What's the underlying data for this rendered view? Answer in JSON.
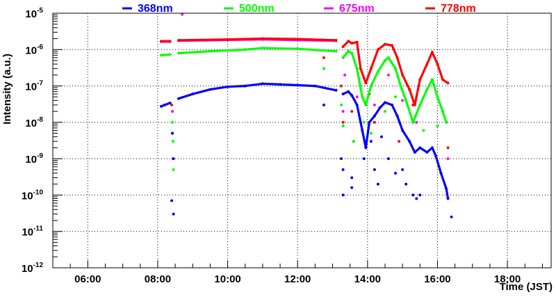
{
  "chart_data": {
    "type": "scatter",
    "title": "",
    "xlabel": "Time (JST)",
    "ylabel": "Intensity (a.u.)",
    "xlim_hours": [
      5.0,
      19.25
    ],
    "ylim": [
      1e-12,
      1e-05
    ],
    "yscale": "log",
    "grid": true,
    "legend_placement": "top",
    "x_ticks": [
      {
        "value": 6,
        "label": "06:00"
      },
      {
        "value": 8,
        "label": "08:00"
      },
      {
        "value": 10,
        "label": "10:00"
      },
      {
        "value": 12,
        "label": "12:00"
      },
      {
        "value": 14,
        "label": "14:00"
      },
      {
        "value": 16,
        "label": "16:00"
      },
      {
        "value": 18,
        "label": "18:00"
      }
    ],
    "y_ticks": [
      {
        "exp": -5,
        "base": "10",
        "sup": "-5"
      },
      {
        "exp": -6,
        "base": "10",
        "sup": "-6"
      },
      {
        "exp": -7,
        "base": "10",
        "sup": "-7"
      },
      {
        "exp": -8,
        "base": "10",
        "sup": "-8"
      },
      {
        "exp": -9,
        "base": "10",
        "sup": "-9"
      },
      {
        "exp": -10,
        "base": "10",
        "sup": "-10"
      },
      {
        "exp": -11,
        "base": "10",
        "sup": "-11"
      },
      {
        "exp": -12,
        "base": "10",
        "sup": "-12"
      }
    ],
    "series": [
      {
        "name": "368nm",
        "color": "#0000ff",
        "segments": [
          [
            [
              8.1,
              2.75e-08
            ],
            [
              8.2,
              3e-08
            ],
            [
              8.35,
              3.4e-08
            ]
          ],
          [
            [
              8.6,
              4.5e-08
            ],
            [
              9.0,
              6e-08
            ],
            [
              9.5,
              8e-08
            ],
            [
              10.0,
              9.5e-08
            ],
            [
              10.5,
              1e-07
            ],
            [
              11.0,
              1.15e-07
            ],
            [
              11.5,
              1.1e-07
            ],
            [
              12.0,
              1.05e-07
            ],
            [
              12.5,
              1e-07
            ],
            [
              13.1,
              7.6e-08
            ]
          ],
          [
            [
              13.3,
              6e-08
            ],
            [
              13.45,
              7e-08
            ],
            [
              13.55,
              5.5e-08
            ],
            [
              13.7,
              3e-08
            ],
            [
              13.85,
              6e-09
            ],
            [
              13.95,
              2e-09
            ],
            [
              14.05,
              1e-08
            ],
            [
              14.2,
              1.5e-08
            ],
            [
              14.35,
              2.5e-08
            ],
            [
              14.5,
              3.5e-08
            ],
            [
              14.7,
              3e-08
            ],
            [
              14.85,
              1.5e-08
            ],
            [
              15.0,
              6e-09
            ],
            [
              15.2,
              3e-09
            ],
            [
              15.35,
              1.5e-09
            ],
            [
              15.5,
              2e-09
            ],
            [
              15.7,
              1.5e-09
            ],
            [
              15.85,
              2e-09
            ],
            [
              15.95,
              1.2e-09
            ],
            [
              16.1,
              4e-10
            ],
            [
              16.25,
              1.5e-10
            ],
            [
              16.3,
              8e-11
            ]
          ]
        ],
        "scatter": [
          [
            8.4,
            7e-11
          ],
          [
            8.45,
            3e-11
          ],
          [
            8.42,
            5e-09
          ],
          [
            8.44,
            1e-09
          ],
          [
            12.75,
            3e-08
          ],
          [
            13.25,
            1e-09
          ],
          [
            13.3,
            5e-10
          ],
          [
            13.3,
            1e-10
          ],
          [
            13.55,
            1.6e-10
          ],
          [
            13.55,
            3e-10
          ],
          [
            14.2,
            5e-10
          ],
          [
            14.3,
            2e-10
          ],
          [
            14.1,
            3e-09
          ],
          [
            14.6,
            1e-09
          ],
          [
            14.8,
            4e-10
          ],
          [
            15.1,
            2e-10
          ],
          [
            15.3,
            1e-10
          ],
          [
            15.5,
            1e-10
          ],
          [
            15.4,
            8e-11
          ],
          [
            16.4,
            2.5e-11
          ],
          [
            13.9,
            1e-09
          ],
          [
            14.4,
            4e-09
          ],
          [
            15.0,
            5e-10
          ]
        ]
      },
      {
        "name": "500nm",
        "color": "#00ff00",
        "segments": [
          [
            [
              8.1,
              7e-07
            ],
            [
              8.35,
              7.3e-07
            ]
          ],
          [
            [
              8.6,
              8e-07
            ],
            [
              9.5,
              9e-07
            ],
            [
              10.5,
              1e-06
            ],
            [
              11.0,
              1.1e-06
            ],
            [
              12.0,
              1.05e-06
            ],
            [
              13.1,
              9e-07
            ]
          ],
          [
            [
              13.3,
              6e-07
            ],
            [
              13.45,
              9e-07
            ],
            [
              13.55,
              8e-07
            ],
            [
              13.7,
              3e-07
            ],
            [
              13.85,
              5e-08
            ],
            [
              13.95,
              3e-08
            ],
            [
              14.1,
              1e-07
            ],
            [
              14.3,
              2.5e-07
            ],
            [
              14.5,
              5e-07
            ],
            [
              14.6,
              6e-07
            ],
            [
              14.8,
              3e-07
            ],
            [
              14.95,
              1e-07
            ],
            [
              15.1,
              4e-08
            ],
            [
              15.3,
              1e-08
            ],
            [
              15.5,
              3e-08
            ],
            [
              15.7,
              8e-08
            ],
            [
              15.85,
              1.5e-07
            ],
            [
              16.0,
              5e-08
            ],
            [
              16.15,
              2e-08
            ],
            [
              16.25,
              1e-08
            ]
          ]
        ],
        "scatter": [
          [
            8.42,
            1e-08
          ],
          [
            8.45,
            5e-10
          ],
          [
            8.44,
            3e-09
          ],
          [
            13.25,
            3e-08
          ],
          [
            13.3,
            8e-09
          ],
          [
            13.6,
            3e-09
          ],
          [
            14.1,
            5e-09
          ],
          [
            14.5,
            2e-08
          ],
          [
            15.2,
            3e-09
          ],
          [
            15.6,
            6e-09
          ],
          [
            12.75,
            3e-07
          ],
          [
            13.9,
            1e-08
          ],
          [
            14.8,
            5e-08
          ],
          [
            16.0,
            8e-09
          ]
        ]
      },
      {
        "name": "675nm",
        "color": "#ff00ff",
        "segments": [
          [
            [
              8.1,
              1.65e-06
            ],
            [
              8.35,
              1.65e-06
            ]
          ],
          [
            [
              8.6,
              1.75e-06
            ],
            [
              11.0,
              1.9e-06
            ],
            [
              13.1,
              1.75e-06
            ]
          ]
        ],
        "scatter": [
          [
            8.7,
            9.3e-06
          ],
          [
            8.42,
            2e-08
          ],
          [
            13.3,
            2e-08
          ],
          [
            13.7,
            5e-08
          ],
          [
            14.2,
            3e-08
          ],
          [
            14.6,
            2e-07
          ],
          [
            15.0,
            4e-08
          ],
          [
            15.4,
            1e-08
          ],
          [
            16.3,
            1e-09
          ],
          [
            13.35,
            2e-07
          ]
        ]
      },
      {
        "name": "778nm",
        "color": "#ff0000",
        "segments": [
          [
            [
              8.1,
              1.7e-06
            ],
            [
              8.35,
              1.7e-06
            ]
          ],
          [
            [
              8.6,
              1.8e-06
            ],
            [
              10.0,
              1.9e-06
            ],
            [
              11.0,
              2e-06
            ],
            [
              12.0,
              1.95e-06
            ],
            [
              13.1,
              1.8e-06
            ]
          ],
          [
            [
              13.3,
              1.2e-06
            ],
            [
              13.45,
              1.7e-06
            ],
            [
              13.55,
              1.5e-06
            ],
            [
              13.7,
              1.6e-06
            ],
            [
              13.8,
              3e-07
            ],
            [
              13.95,
              1.2e-07
            ],
            [
              14.1,
              3e-07
            ],
            [
              14.3,
              1e-06
            ],
            [
              14.5,
              1.4e-06
            ],
            [
              14.7,
              1.3e-06
            ],
            [
              14.85,
              6e-07
            ],
            [
              15.0,
              2e-07
            ],
            [
              15.2,
              8e-08
            ],
            [
              15.35,
              3e-08
            ],
            [
              15.5,
              1.5e-07
            ],
            [
              15.7,
              4e-07
            ],
            [
              15.85,
              8.5e-07
            ],
            [
              16.0,
              4e-07
            ],
            [
              16.15,
              1.5e-07
            ],
            [
              16.3,
              1.2e-07
            ]
          ]
        ],
        "scatter": [
          [
            8.4,
            3e-08
          ],
          [
            8.42,
            5e-09
          ],
          [
            8.45,
            1e-09
          ],
          [
            13.25,
            1e-07
          ],
          [
            13.3,
            1e-08
          ],
          [
            13.55,
            2e-08
          ],
          [
            13.6,
            3e-09
          ],
          [
            14.2,
            1e-08
          ],
          [
            14.9,
            3e-09
          ],
          [
            15.3,
            3e-08
          ],
          [
            16.3,
            2e-09
          ],
          [
            12.75,
            6e-07
          ],
          [
            14.05,
            6e-08
          ]
        ]
      }
    ]
  }
}
